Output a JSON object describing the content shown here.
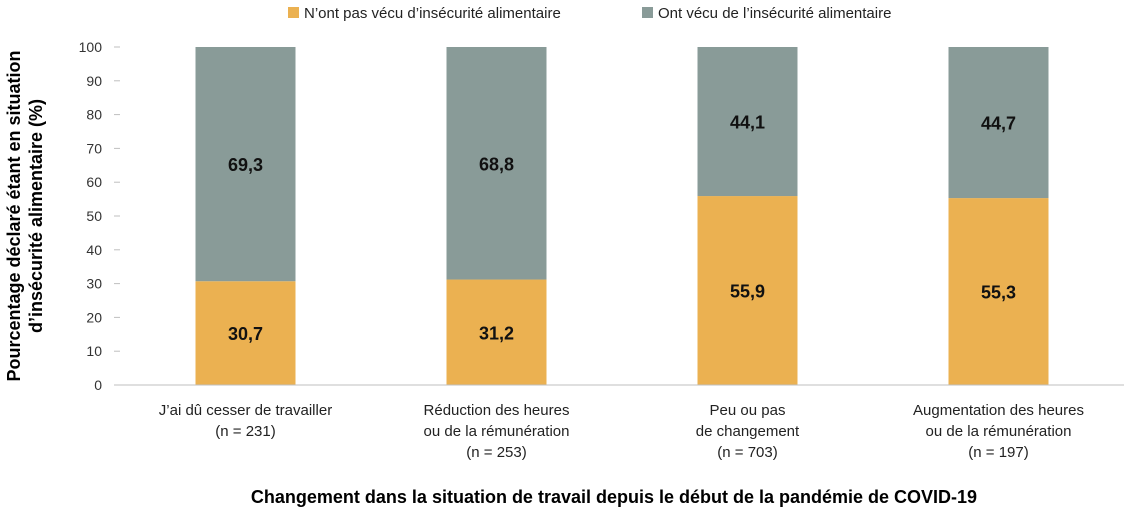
{
  "chart_data": {
    "type": "bar",
    "stacked": true,
    "categories": [
      [
        "J’ai dû cesser de travailler",
        "(n = 231)"
      ],
      [
        "Réduction des heures",
        "ou de la rémunération",
        "(n = 253)"
      ],
      [
        "Peu ou pas",
        "de changement",
        "(n = 703)"
      ],
      [
        "Augmentation des heures",
        "ou de la rémunération",
        "(n = 197)"
      ]
    ],
    "series": [
      {
        "name": "N’ont pas vécu d’insécurité alimentaire",
        "color": "#EBB151",
        "values": [
          30.7,
          31.2,
          55.9,
          55.3
        ],
        "labels": [
          "30,7",
          "31,2",
          "55,9",
          "55,3"
        ]
      },
      {
        "name": "Ont vécu de l’insécurité alimentaire",
        "color": "#899B98",
        "values": [
          69.3,
          68.8,
          44.1,
          44.7
        ],
        "labels": [
          "69,3",
          "68,8",
          "44,1",
          "44,7"
        ]
      }
    ],
    "ylim": [
      0,
      100
    ],
    "yticks": [
      0,
      10,
      20,
      30,
      40,
      50,
      60,
      70,
      80,
      90,
      100
    ],
    "ylabel_lines": [
      "Pourcentage déclaré étant en situation",
      "d’insécurité alimentaire (%)"
    ],
    "xlabel": "Changement dans la situation de travail depuis le début de la pandémie de COVID-19",
    "legend_position": "top-center",
    "grid": false
  }
}
